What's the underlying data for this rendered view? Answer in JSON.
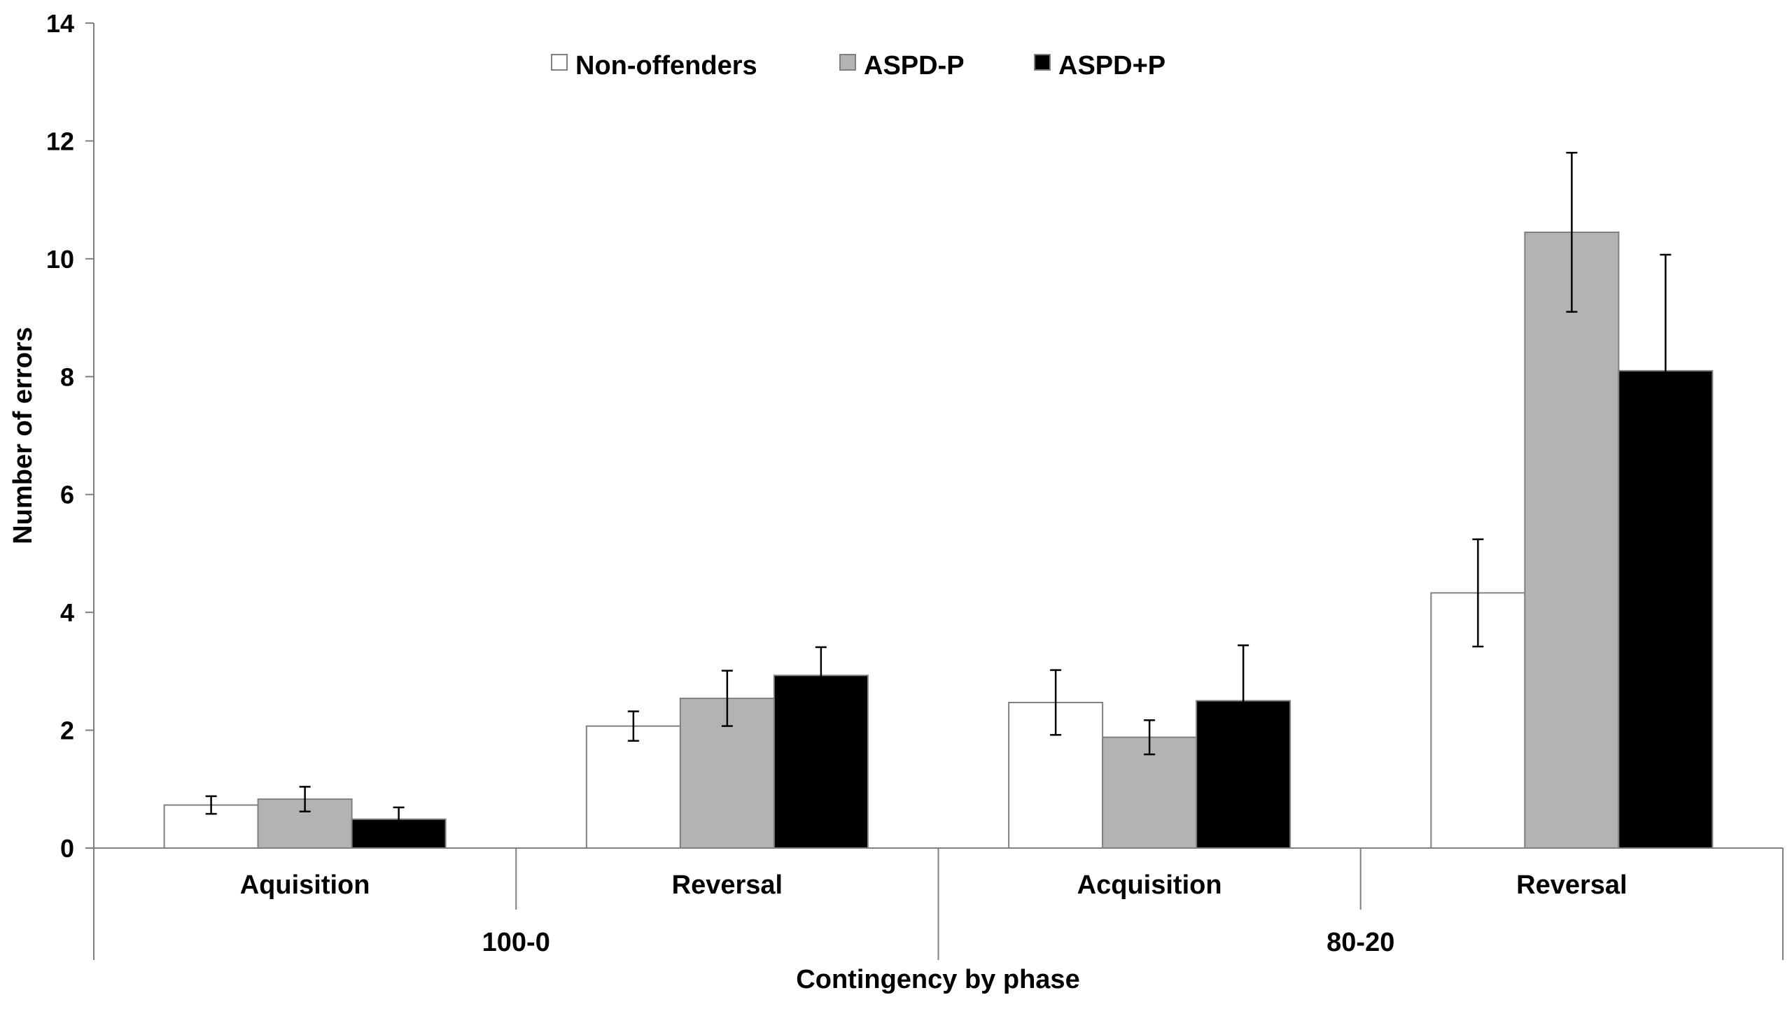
{
  "chart_data": {
    "type": "bar",
    "xlabel": "Contingency by phase",
    "ylabel": "Number of errors",
    "ylim": [
      0,
      14
    ],
    "yticks": [
      "0",
      "2",
      "4",
      "6",
      "8",
      "10",
      "12",
      "14"
    ],
    "grid": false,
    "legend_position": "top-center",
    "groups": [
      {
        "label": "100-0",
        "categories": [
          "Aquisition",
          "Reversal"
        ]
      },
      {
        "label": "80-20",
        "categories": [
          "Acquisition",
          "Reversal"
        ]
      }
    ],
    "categories": [
      "Aquisition",
      "Reversal",
      "Acquisition",
      "Reversal"
    ],
    "series": [
      {
        "name": "Non-offenders",
        "color": "#ffffff",
        "values": [
          0.73,
          2.07,
          2.47,
          4.33
        ],
        "errors": [
          0.15,
          0.25,
          0.55,
          0.91
        ]
      },
      {
        "name": "ASPD-P",
        "color": "#b3b3b3",
        "values": [
          0.83,
          2.54,
          1.88,
          10.45
        ],
        "errors": [
          0.21,
          0.47,
          0.29,
          1.35
        ]
      },
      {
        "name": "ASPD+P",
        "color": "#000000",
        "values": [
          0.49,
          2.93,
          2.5,
          8.1
        ],
        "errors": [
          0.2,
          0.48,
          0.94,
          1.97
        ]
      }
    ],
    "bar_stroke": "#808080",
    "axis_color": "#808080"
  }
}
